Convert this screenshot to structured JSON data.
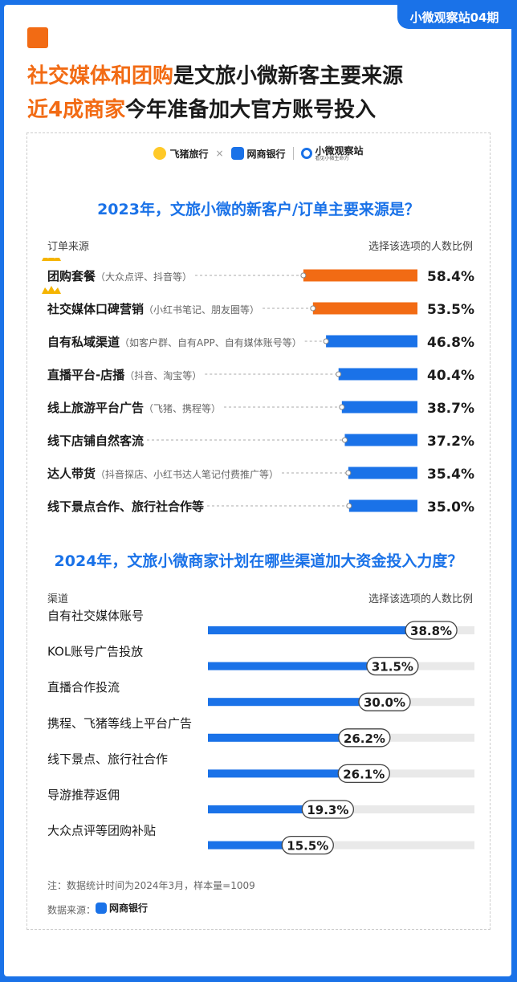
{
  "header": {
    "issue": "小微观察站04期",
    "line1_highlight": "社交媒体和团购",
    "line1_rest": "是文旅小微新客主要来源",
    "line2_highlight": "近4成商家",
    "line2_rest": "今年准备加大官方账号投入"
  },
  "logos": {
    "feizhu": "飞猪旅行",
    "times": "×",
    "wangshang": "网商银行",
    "xiaowei": "小微观察站",
    "xiaowei_sub": "看见小微生命力"
  },
  "colors": {
    "blue": "#1a72e8",
    "orange": "#f26b14",
    "track": "#e9e9e9"
  },
  "chart_data": [
    {
      "type": "bar",
      "title": "2023年，文旅小微的新客户/订单主要来源是？",
      "column_left": "订单来源",
      "column_right": "选择该选项的人数比例",
      "unit": "%",
      "categories": [
        {
          "label": "团购套餐",
          "note": "（大众点评、抖音等）",
          "crown": true
        },
        {
          "label": "社交媒体口碑营销",
          "note": "（小红书笔记、朋友圈等）",
          "crown": true
        },
        {
          "label": "自有私域渠道",
          "note": "（如客户群、自有APP、自有媒体账号等）",
          "crown": false
        },
        {
          "label": "直播平台-店播",
          "note": "（抖音、淘宝等）",
          "crown": false
        },
        {
          "label": "线上旅游平台广告",
          "note": "（飞猪、携程等）",
          "crown": false
        },
        {
          "label": "线下店铺自然客流",
          "note": "",
          "crown": false
        },
        {
          "label": "达人带货",
          "note": "（抖音探店、小红书达人笔记付费推广等）",
          "crown": false
        },
        {
          "label": "线下景点合作、旅行社合作等",
          "note": "",
          "crown": false
        }
      ],
      "values": [
        58.4,
        53.5,
        46.8,
        40.4,
        38.7,
        37.2,
        35.4,
        35.0
      ],
      "value_labels": [
        "58.4%",
        "53.5%",
        "46.8%",
        "40.4%",
        "38.7%",
        "37.2%",
        "35.4%",
        "35.0%"
      ],
      "highlight_top": 2
    },
    {
      "type": "bar",
      "title": "2024年，文旅小微商家计划在哪些渠道加大资金投入力度？",
      "column_left": "渠道",
      "column_right": "选择该选项的人数比例",
      "unit": "%",
      "categories": [
        "自有社交媒体账号",
        "KOL账号广告投放",
        "直播合作投流",
        "携程、飞猪等线上平台广告",
        "线下景点、旅行社合作",
        "导游推荐返佣",
        "大众点评等团购补贴"
      ],
      "values": [
        38.8,
        31.5,
        30.0,
        26.2,
        26.1,
        19.3,
        15.5
      ],
      "value_labels": [
        "38.8%",
        "31.5%",
        "30.0%",
        "26.2%",
        "26.1%",
        "19.3%",
        "15.5%"
      ]
    }
  ],
  "footer": {
    "note": "注：数据统计时间为2024年3月，样本量=1009",
    "source_label": "数据来源：",
    "source_logo": "网商银行"
  }
}
